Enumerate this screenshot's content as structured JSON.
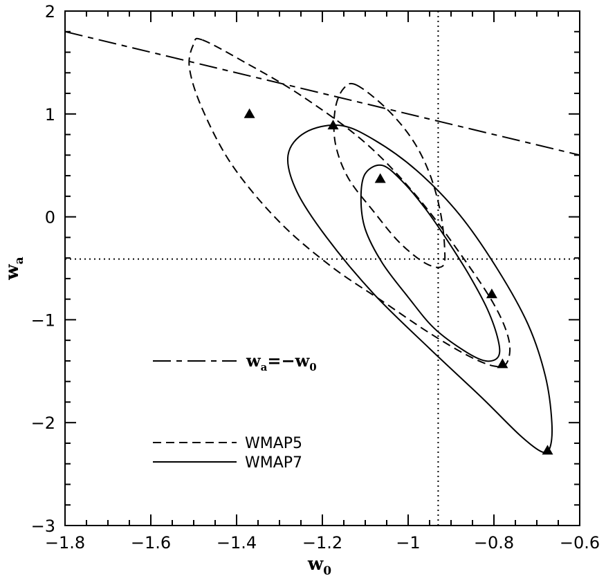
{
  "chart_data": {
    "type": "line",
    "xlabel": "w",
    "xlabel_sub": "0",
    "ylabel": "w",
    "ylabel_sub": "a",
    "xlim": [
      -1.8,
      -0.6
    ],
    "ylim": [
      -3,
      2
    ],
    "x_ticks": [
      -1.8,
      -1.6,
      -1.4,
      -1.2,
      -1.0,
      -0.8,
      -0.6
    ],
    "x_tick_labels": [
      "−1.8",
      "−1.6",
      "−1.4",
      "−1.2",
      "−1",
      "−0.8",
      "−0.6"
    ],
    "y_ticks": [
      -3,
      -2,
      -1,
      0,
      1,
      2
    ],
    "y_tick_labels": [
      "−3",
      "−2",
      "−1",
      "0",
      "1",
      "2"
    ],
    "reference_lines": {
      "vertical_dotted_x": -0.93,
      "horizontal_dotted_y": -0.41
    },
    "series": [
      {
        "name": "WMAP5",
        "style": "dashed",
        "contours": [
          [
            [
              -1.12,
              1.28
            ],
            [
              -1.05,
              1.05
            ],
            [
              -0.99,
              0.75
            ],
            [
              -0.95,
              0.42
            ],
            [
              -0.925,
              0.05
            ],
            [
              -0.915,
              -0.3
            ],
            [
              -0.92,
              -0.48
            ],
            [
              -0.96,
              -0.45
            ],
            [
              -1.02,
              -0.25
            ],
            [
              -1.08,
              0.05
            ],
            [
              -1.14,
              0.38
            ],
            [
              -1.17,
              0.72
            ],
            [
              -1.17,
              1.05
            ],
            [
              -1.15,
              1.25
            ],
            [
              -1.12,
              1.28
            ]
          ],
          [
            [
              -1.48,
              1.72
            ],
            [
              -1.38,
              1.5
            ],
            [
              -1.25,
              1.18
            ],
            [
              -1.1,
              0.72
            ],
            [
              -0.98,
              0.2
            ],
            [
              -0.88,
              -0.35
            ],
            [
              -0.8,
              -0.85
            ],
            [
              -0.765,
              -1.2
            ],
            [
              -0.77,
              -1.42
            ],
            [
              -0.8,
              -1.45
            ],
            [
              -0.86,
              -1.35
            ],
            [
              -0.95,
              -1.13
            ],
            [
              -1.06,
              -0.82
            ],
            [
              -1.18,
              -0.48
            ],
            [
              -1.3,
              -0.05
            ],
            [
              -1.41,
              0.5
            ],
            [
              -1.48,
              1.05
            ],
            [
              -1.51,
              1.45
            ],
            [
              -1.5,
              1.68
            ],
            [
              -1.48,
              1.72
            ]
          ]
        ]
      },
      {
        "name": "WMAP7",
        "style": "solid",
        "contours": [
          [
            [
              -1.06,
              0.5
            ],
            [
              -1.01,
              0.33
            ],
            [
              -0.96,
              0.08
            ],
            [
              -0.91,
              -0.22
            ],
            [
              -0.86,
              -0.55
            ],
            [
              -0.815,
              -0.9
            ],
            [
              -0.79,
              -1.2
            ],
            [
              -0.79,
              -1.36
            ],
            [
              -0.82,
              -1.4
            ],
            [
              -0.87,
              -1.3
            ],
            [
              -0.94,
              -1.08
            ],
            [
              -1.0,
              -0.78
            ],
            [
              -1.06,
              -0.45
            ],
            [
              -1.1,
              -0.12
            ],
            [
              -1.11,
              0.18
            ],
            [
              -1.1,
              0.42
            ],
            [
              -1.06,
              0.5
            ]
          ],
          [
            [
              -1.16,
              0.89
            ],
            [
              -1.08,
              0.75
            ],
            [
              -0.98,
              0.45
            ],
            [
              -0.88,
              0.02
            ],
            [
              -0.79,
              -0.52
            ],
            [
              -0.72,
              -1.05
            ],
            [
              -0.68,
              -1.55
            ],
            [
              -0.665,
              -2.0
            ],
            [
              -0.67,
              -2.25
            ],
            [
              -0.69,
              -2.28
            ],
            [
              -0.74,
              -2.12
            ],
            [
              -0.83,
              -1.75
            ],
            [
              -0.95,
              -1.28
            ],
            [
              -1.08,
              -0.75
            ],
            [
              -1.19,
              -0.2
            ],
            [
              -1.26,
              0.25
            ],
            [
              -1.28,
              0.6
            ],
            [
              -1.24,
              0.82
            ],
            [
              -1.16,
              0.89
            ]
          ]
        ]
      },
      {
        "name": "w_a = −w_0",
        "style": "long-dashed",
        "points": [
          [
            -1.8,
            1.8
          ],
          [
            -0.6,
            0.6
          ]
        ]
      }
    ],
    "markers": {
      "shape": "triangle",
      "color": "#000000",
      "points": [
        [
          -1.37,
          1.0
        ],
        [
          -1.175,
          0.89
        ],
        [
          -1.065,
          0.37
        ],
        [
          -0.805,
          -0.75
        ],
        [
          -0.78,
          -1.43
        ],
        [
          -0.675,
          -2.27
        ]
      ]
    },
    "legend": {
      "placement": "bottom-left",
      "entries": [
        {
          "style": "long-dashed",
          "label_main": "w",
          "label_sub": "a",
          "label_eq": "=−",
          "label_main2": "w",
          "label_sub2": "0"
        },
        {
          "style": "dashed",
          "label": "WMAP5"
        },
        {
          "style": "solid",
          "label": "WMAP7"
        }
      ]
    },
    "colors": {
      "ink": "#000000",
      "background": "#ffffff"
    }
  }
}
